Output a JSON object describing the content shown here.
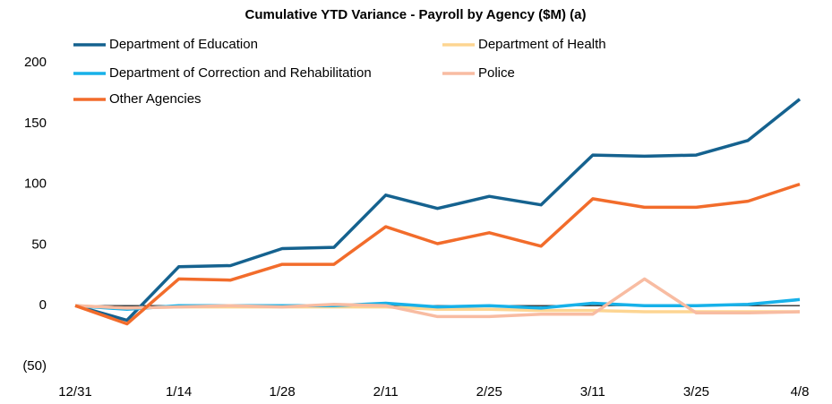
{
  "chart_data": {
    "type": "line",
    "title": "Cumulative YTD Variance - Payroll by Agency ($M) (a)",
    "categories": [
      "12/31",
      null,
      "1/14",
      null,
      "1/28",
      null,
      "2/11",
      null,
      "2/25",
      null,
      "3/11",
      null,
      "3/25",
      null,
      "4/8"
    ],
    "series": [
      {
        "name": "Department of Education",
        "color": "#15628f",
        "values": [
          0,
          -12,
          32,
          33,
          47,
          48,
          91,
          80,
          90,
          83,
          124,
          123,
          124,
          136,
          170
        ]
      },
      {
        "name": "Department of Health",
        "color": "#fdd592",
        "values": [
          0,
          -2,
          -1,
          -1,
          -1,
          -1,
          -1,
          -3,
          -3,
          -4,
          -4,
          -5,
          -5,
          -5,
          -5
        ]
      },
      {
        "name": "Department of Correction and Rehabilitation",
        "color": "#17b1e9",
        "values": [
          0,
          -3,
          0,
          0,
          0,
          0,
          2,
          -1,
          0,
          -2,
          2,
          0,
          0,
          1,
          5
        ]
      },
      {
        "name": "Police",
        "color": "#f8bca2",
        "values": [
          0,
          -2,
          -1,
          0,
          -1,
          1,
          0,
          -9,
          -9,
          -7,
          -7,
          22,
          -6,
          -6,
          -5
        ]
      },
      {
        "name": "Other Agencies",
        "color": "#f26c2b",
        "values": [
          0,
          -15,
          22,
          21,
          34,
          34,
          65,
          51,
          60,
          49,
          88,
          81,
          81,
          86,
          100
        ]
      }
    ],
    "ylim": [
      -50,
      200
    ],
    "yticks": [
      {
        "value": -50,
        "label": "(50)"
      },
      0,
      50,
      100,
      150,
      200
    ],
    "grid": false
  }
}
